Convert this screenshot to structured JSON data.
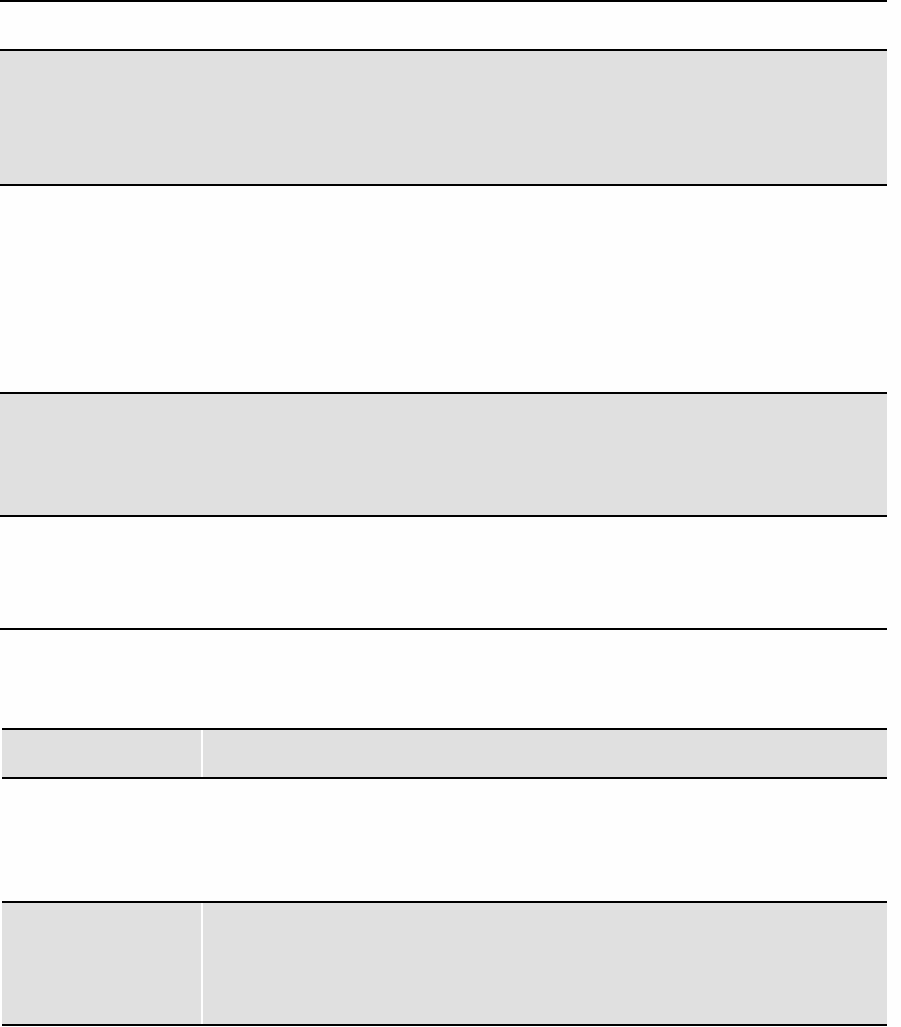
{
  "colors": {
    "shaded_fill": "#e0e0e0",
    "background": "#fefefe",
    "rule": "#000000",
    "column_divider": "#ffffff"
  }
}
